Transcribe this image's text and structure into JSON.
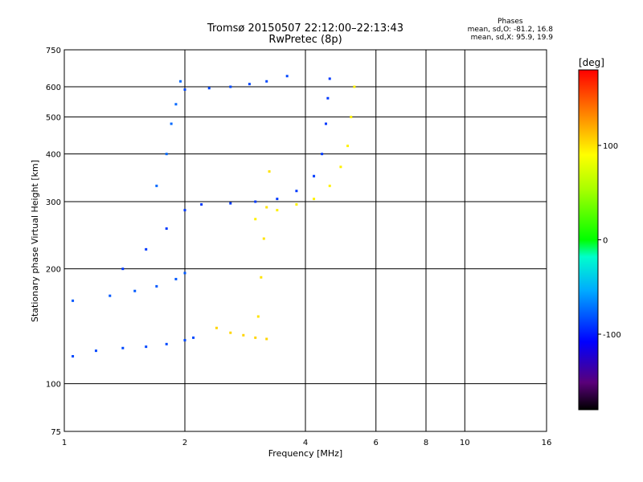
{
  "title": "Tromsø 20150507 22:12:00–22:13:43",
  "subtitle": "RwPretec (8p)",
  "phase_box": {
    "heading": "Phases",
    "line_o": "mean, sd,O: -81.2, 16.8",
    "line_x": "mean, sd,X:  95.9, 19.9"
  },
  "colorbar": {
    "unit": "[deg]",
    "ticks": [
      {
        "value": 100,
        "label": "100"
      },
      {
        "value": 0,
        "label": "0"
      },
      {
        "value": -100,
        "label": "-100"
      }
    ],
    "range": [
      -180,
      180
    ]
  },
  "chart_data": {
    "type": "scatter",
    "xlabel": "Frequency [MHz]",
    "ylabel": "Stationary phase Virtual Height [km]",
    "x_scale": "log",
    "y_scale": "log",
    "xlim": [
      1,
      16
    ],
    "ylim": [
      75,
      750
    ],
    "grid": true,
    "x_ticks": [
      {
        "value": 1,
        "label": "1"
      },
      {
        "value": 2,
        "label": "2"
      },
      {
        "value": 4,
        "label": "4"
      },
      {
        "value": 6,
        "label": "6"
      },
      {
        "value": 8,
        "label": "8"
      },
      {
        "value": 10,
        "label": "10"
      },
      {
        "value": 16,
        "label": "16"
      }
    ],
    "y_ticks": [
      {
        "value": 75,
        "label": "75"
      },
      {
        "value": 100,
        "label": "100"
      },
      {
        "value": 200,
        "label": "200"
      },
      {
        "value": 300,
        "label": "300"
      },
      {
        "value": 400,
        "label": "400"
      },
      {
        "value": 500,
        "label": "500"
      },
      {
        "value": 600,
        "label": "600"
      },
      {
        "value": 750,
        "label": "750"
      }
    ],
    "traces": [
      {
        "mode": "O",
        "phase": -85,
        "points": [
          [
            1.05,
            118
          ],
          [
            1.2,
            122
          ],
          [
            1.4,
            124
          ],
          [
            1.6,
            125
          ],
          [
            1.8,
            127
          ],
          [
            2.0,
            130
          ],
          [
            2.1,
            132
          ]
        ]
      },
      {
        "mode": "O",
        "phase": -80,
        "points": [
          [
            1.05,
            165
          ],
          [
            1.3,
            170
          ],
          [
            1.5,
            175
          ],
          [
            1.7,
            180
          ],
          [
            1.9,
            188
          ],
          [
            2.0,
            195
          ]
        ]
      },
      {
        "mode": "O",
        "phase": -90,
        "points": [
          [
            1.4,
            200
          ],
          [
            1.6,
            225
          ],
          [
            1.8,
            255
          ],
          [
            2.0,
            285
          ],
          [
            2.2,
            295
          ],
          [
            2.6,
            297
          ],
          [
            3.0,
            300
          ],
          [
            3.4,
            305
          ],
          [
            3.8,
            320
          ],
          [
            4.2,
            350
          ],
          [
            4.4,
            400
          ],
          [
            4.5,
            480
          ],
          [
            4.55,
            560
          ],
          [
            4.6,
            630
          ]
        ]
      },
      {
        "mode": "O",
        "phase": -85,
        "points": [
          [
            2.0,
            590
          ],
          [
            2.3,
            595
          ],
          [
            2.6,
            600
          ],
          [
            2.9,
            610
          ],
          [
            3.2,
            620
          ],
          [
            3.6,
            640
          ]
        ]
      },
      {
        "mode": "O",
        "phase": -75,
        "points": [
          [
            1.7,
            330
          ],
          [
            1.8,
            400
          ],
          [
            1.85,
            480
          ],
          [
            1.9,
            540
          ],
          [
            1.95,
            620
          ]
        ]
      },
      {
        "mode": "X",
        "phase": 95,
        "points": [
          [
            3.0,
            270
          ],
          [
            3.4,
            285
          ],
          [
            3.8,
            295
          ],
          [
            4.2,
            305
          ],
          [
            4.6,
            330
          ],
          [
            4.9,
            370
          ],
          [
            5.1,
            420
          ],
          [
            5.2,
            500
          ],
          [
            5.3,
            600
          ]
        ]
      },
      {
        "mode": "X",
        "phase": 105,
        "points": [
          [
            2.4,
            140
          ],
          [
            2.6,
            136
          ],
          [
            2.8,
            134
          ],
          [
            3.0,
            132
          ],
          [
            3.2,
            131
          ]
        ]
      },
      {
        "mode": "X",
        "phase": 100,
        "points": [
          [
            3.05,
            150
          ],
          [
            3.1,
            190
          ],
          [
            3.15,
            240
          ],
          [
            3.2,
            290
          ],
          [
            3.25,
            360
          ]
        ]
      }
    ]
  }
}
